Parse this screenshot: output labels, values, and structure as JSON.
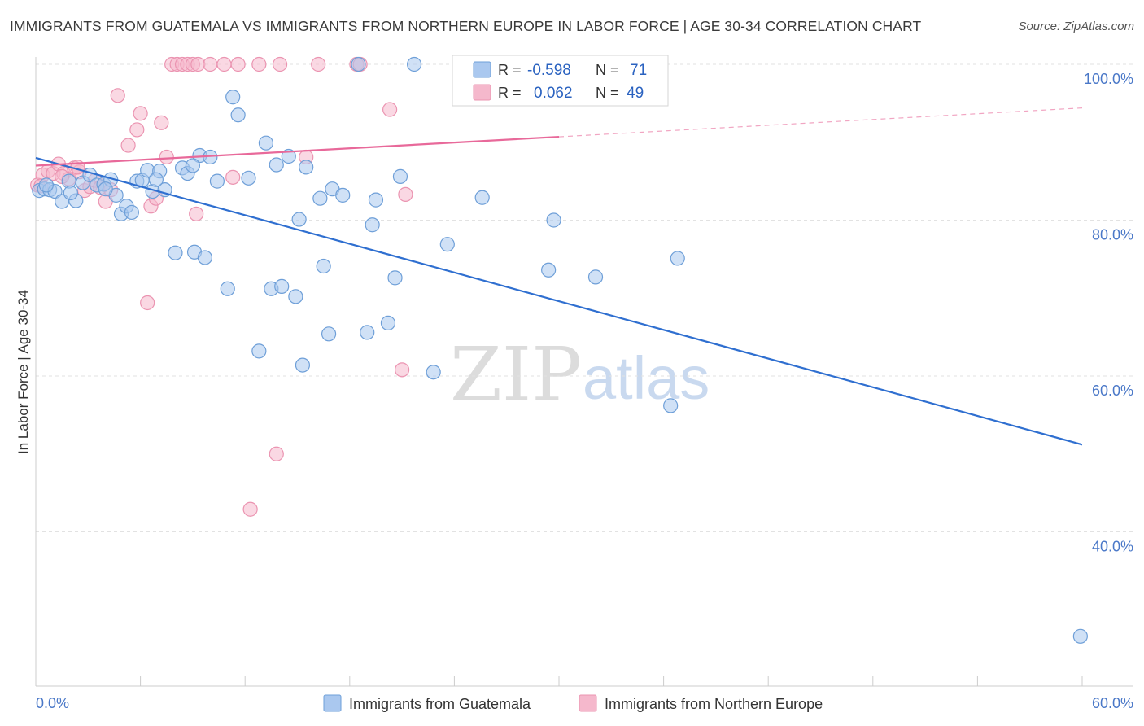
{
  "header": {
    "title": "IMMIGRANTS FROM GUATEMALA VS IMMIGRANTS FROM NORTHERN EUROPE IN LABOR FORCE | AGE 30-34 CORRELATION CHART",
    "source": "Source: ZipAtlas.com"
  },
  "watermark": {
    "zip": "ZIP",
    "atlas": "atlas"
  },
  "legend_box": {
    "rows": [
      {
        "r_label": "R =",
        "r_value": "-0.598",
        "n_label": "N =",
        "n_value": "71"
      },
      {
        "r_label": "R =",
        "r_value": "0.062",
        "n_label": "N =",
        "n_value": "49"
      }
    ]
  },
  "bottom_legend": {
    "items": [
      {
        "label": "Immigrants from Guatemala"
      },
      {
        "label": "Immigrants from Northern Europe"
      }
    ]
  },
  "colors": {
    "blue_fill": "#aac8ef",
    "blue_stroke": "#6e9fd8",
    "blue_line": "#2f6fd0",
    "pink_fill": "#f5b8cc",
    "pink_stroke": "#eb94b1",
    "pink_line": "#e8699a",
    "grid": "#e2e2e2",
    "axis_text": "#4a78c8"
  },
  "chart_data": {
    "type": "scatter",
    "title": "IMMIGRANTS FROM GUATEMALA VS IMMIGRANTS FROM NORTHERN EUROPE IN LABOR FORCE | AGE 30-34 CORRELATION CHART",
    "xlabel": "",
    "ylabel": "In Labor Force | Age 30-34",
    "xlim": [
      0,
      60
    ],
    "ylim": [
      22,
      102
    ],
    "x_tick_labels": [
      "0.0%",
      "60.0%"
    ],
    "y_ticks": [
      40,
      60,
      80,
      100
    ],
    "y_tick_labels": [
      "40.0%",
      "60.0%",
      "80.0%",
      "100.0%"
    ],
    "grid": true,
    "legend_position": "bottom-center",
    "series": [
      {
        "name": "Immigrants from Guatemala",
        "color": "#aac8ef",
        "r": -0.598,
        "n": 71,
        "trend": {
          "x0": 0,
          "y0": 88.0,
          "x1": 60,
          "y1": 51.2
        },
        "points": [
          [
            0.2,
            83.8
          ],
          [
            0.5,
            84.0
          ],
          [
            0.8,
            83.9
          ],
          [
            1.1,
            83.7
          ],
          [
            1.5,
            82.4
          ],
          [
            1.9,
            85.0
          ],
          [
            2.3,
            82.5
          ],
          [
            2.7,
            84.8
          ],
          [
            3.1,
            85.8
          ],
          [
            3.5,
            84.5
          ],
          [
            3.9,
            84.6
          ],
          [
            4.3,
            85.2
          ],
          [
            4.6,
            83.2
          ],
          [
            4.9,
            80.8
          ],
          [
            5.2,
            81.8
          ],
          [
            5.5,
            81.0
          ],
          [
            5.8,
            85.0
          ],
          [
            6.1,
            85.1
          ],
          [
            6.4,
            86.4
          ],
          [
            6.7,
            83.7
          ],
          [
            7.1,
            86.3
          ],
          [
            7.4,
            83.9
          ],
          [
            8.0,
            75.8
          ],
          [
            8.4,
            86.7
          ],
          [
            8.7,
            86.0
          ],
          [
            9.1,
            75.9
          ],
          [
            9.4,
            88.3
          ],
          [
            9.7,
            75.2
          ],
          [
            10.0,
            88.1
          ],
          [
            10.4,
            85.0
          ],
          [
            11.0,
            71.2
          ],
          [
            11.3,
            95.8
          ],
          [
            11.6,
            93.5
          ],
          [
            12.2,
            85.4
          ],
          [
            12.8,
            63.2
          ],
          [
            13.2,
            89.9
          ],
          [
            13.5,
            71.2
          ],
          [
            13.8,
            87.1
          ],
          [
            14.1,
            71.5
          ],
          [
            14.5,
            88.2
          ],
          [
            14.9,
            70.2
          ],
          [
            15.1,
            80.1
          ],
          [
            15.3,
            61.4
          ],
          [
            15.5,
            86.8
          ],
          [
            16.3,
            82.8
          ],
          [
            16.5,
            74.1
          ],
          [
            16.8,
            65.4
          ],
          [
            17.0,
            84.0
          ],
          [
            17.6,
            83.2
          ],
          [
            19.0,
            65.6
          ],
          [
            19.3,
            79.4
          ],
          [
            19.5,
            82.6
          ],
          [
            20.2,
            66.8
          ],
          [
            20.6,
            72.6
          ],
          [
            20.9,
            85.6
          ],
          [
            21.7,
            100.0
          ],
          [
            22.8,
            60.5
          ],
          [
            23.6,
            76.9
          ],
          [
            25.6,
            82.9
          ],
          [
            29.4,
            73.6
          ],
          [
            29.7,
            80.0
          ],
          [
            32.1,
            72.7
          ],
          [
            36.4,
            56.2
          ],
          [
            36.8,
            75.1
          ],
          [
            59.9,
            26.6
          ],
          [
            18.5,
            100.0
          ],
          [
            9.0,
            87.0
          ],
          [
            2.0,
            83.5
          ],
          [
            6.9,
            85.2
          ],
          [
            4.0,
            84.0
          ],
          [
            0.6,
            84.5
          ]
        ]
      },
      {
        "name": "Immigrants from Northern Europe",
        "color": "#f5b8cc",
        "r": 0.062,
        "n": 49,
        "trend": {
          "x0": 0,
          "y0": 87.0,
          "x1": 60,
          "y1": 94.4,
          "solid_to_x": 30
        },
        "points": [
          [
            0.1,
            84.5
          ],
          [
            0.4,
            85.8
          ],
          [
            0.7,
            86.3
          ],
          [
            1.0,
            86.0
          ],
          [
            1.3,
            87.2
          ],
          [
            1.6,
            86.0
          ],
          [
            1.9,
            85.3
          ],
          [
            2.2,
            86.7
          ],
          [
            2.5,
            86.2
          ],
          [
            2.8,
            83.8
          ],
          [
            3.1,
            84.3
          ],
          [
            3.4,
            85.1
          ],
          [
            3.7,
            84.2
          ],
          [
            4.0,
            82.4
          ],
          [
            4.7,
            96.0
          ],
          [
            5.3,
            89.6
          ],
          [
            5.8,
            91.6
          ],
          [
            6.0,
            93.7
          ],
          [
            6.4,
            69.4
          ],
          [
            6.6,
            81.8
          ],
          [
            6.9,
            82.8
          ],
          [
            7.2,
            92.5
          ],
          [
            7.5,
            88.1
          ],
          [
            7.8,
            100.0
          ],
          [
            8.1,
            100.0
          ],
          [
            8.4,
            100.0
          ],
          [
            8.7,
            100.0
          ],
          [
            9.0,
            100.0
          ],
          [
            9.3,
            100.0
          ],
          [
            9.2,
            80.8
          ],
          [
            10.0,
            100.0
          ],
          [
            10.8,
            100.0
          ],
          [
            11.3,
            85.5
          ],
          [
            11.6,
            100.0
          ],
          [
            12.3,
            42.9
          ],
          [
            12.8,
            100.0
          ],
          [
            13.8,
            50.0
          ],
          [
            14.0,
            100.0
          ],
          [
            15.5,
            88.1
          ],
          [
            16.2,
            100.0
          ],
          [
            18.4,
            100.0
          ],
          [
            18.6,
            100.0
          ],
          [
            20.3,
            94.2
          ],
          [
            21.0,
            60.8
          ],
          [
            21.2,
            83.3
          ],
          [
            4.3,
            83.9
          ],
          [
            2.4,
            86.8
          ],
          [
            0.3,
            84.4
          ],
          [
            1.5,
            85.6
          ]
        ]
      }
    ]
  }
}
